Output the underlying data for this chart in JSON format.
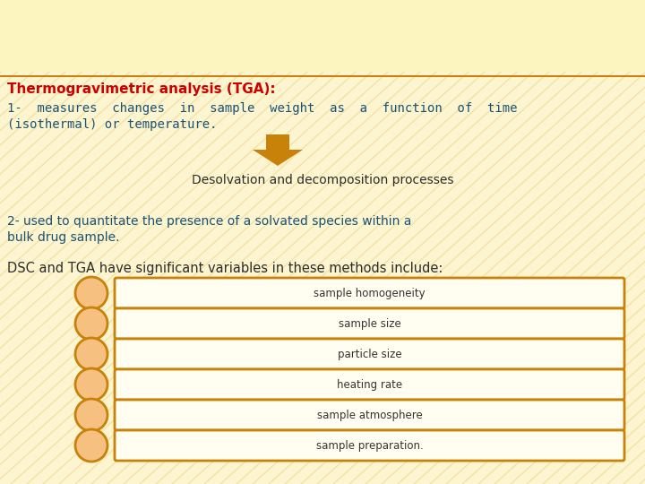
{
  "bg_color_light": "#fdf5d0",
  "bg_color_dark": "#d4a840",
  "title_text": "Thermogravimetric analysis (TGA):",
  "title_color": "#cc0000",
  "line1_text": "1-  measures  changes  in  sample  weight  as  a  function  of  time\n(isothermal) or temperature.",
  "line1_color": "#1a5276",
  "arrow_color": "#c8820a",
  "desolvation_text": "Desolvation and decomposition processes",
  "desolvation_color": "#2c2c2c",
  "line2_text": "2- used to quantitate the presence of a solvated species within a\nbulk drug sample.",
  "line2_color": "#1a5276",
  "dsc_text": "DSC and TGA have significant variables in these methods include:",
  "dsc_color": "#2c2c2c",
  "list_items": [
    "sample homogeneity",
    "sample size",
    "particle size",
    "heating rate",
    "sample atmosphere",
    "sample preparation."
  ],
  "list_box_color": "#fffef0",
  "list_border_color": "#c8820a",
  "list_circle_fill": "#f5c080",
  "list_circle_border": "#c8820a",
  "list_text_color": "#333333",
  "separator_color": "#c8820a",
  "diag_line_color": "#e8d080",
  "diag_line_alpha": 0.5
}
